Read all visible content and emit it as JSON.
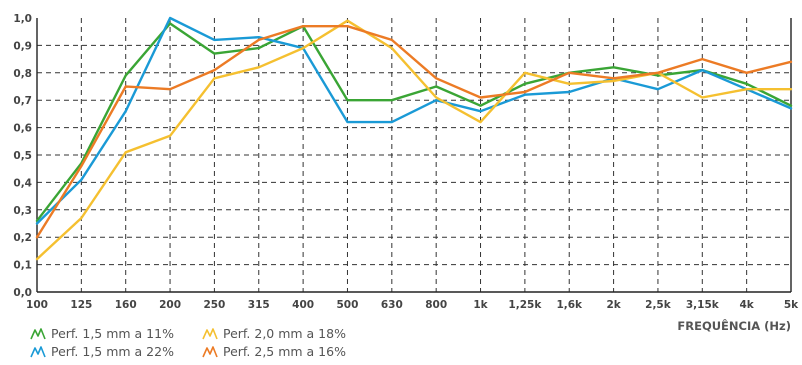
{
  "chart_data": {
    "type": "line",
    "title": "",
    "xlabel": "FREQUÊNCIA (Hz)",
    "ylabel": "",
    "ylim": [
      0,
      1
    ],
    "grid": true,
    "legend_position": "bottom-left",
    "categories": [
      "100",
      "125",
      "160",
      "200",
      "250",
      "315",
      "400",
      "500",
      "630",
      "800",
      "1k",
      "1,25k",
      "1,6k",
      "2k",
      "2,5k",
      "3,15k",
      "4k",
      "5k"
    ],
    "yticks": [
      "0,0",
      "0,1",
      "0,2",
      "0,3",
      "0,4",
      "0,5",
      "0,6",
      "0,7",
      "0,8",
      "0,9",
      "1,0"
    ],
    "series": [
      {
        "name": "Perf. 1,5 mm a 11%",
        "color": "#3aa535",
        "values": [
          0.26,
          0.47,
          0.79,
          0.98,
          0.87,
          0.89,
          0.97,
          0.7,
          0.7,
          0.75,
          0.68,
          0.76,
          0.8,
          0.82,
          0.79,
          0.81,
          0.76,
          0.68
        ]
      },
      {
        "name": "Perf. 1,5 mm a 22%",
        "color": "#1a9ad6",
        "values": [
          0.25,
          0.41,
          0.66,
          1.0,
          0.92,
          0.93,
          0.89,
          0.62,
          0.62,
          0.7,
          0.66,
          0.72,
          0.73,
          0.78,
          0.74,
          0.81,
          0.74,
          0.67
        ]
      },
      {
        "name": "Perf. 2,0 mm a 18%",
        "color": "#f5c030",
        "values": [
          0.12,
          0.27,
          0.51,
          0.57,
          0.78,
          0.82,
          0.89,
          0.99,
          0.89,
          0.71,
          0.62,
          0.8,
          0.76,
          0.77,
          0.8,
          0.71,
          0.74,
          0.74
        ]
      },
      {
        "name": "Perf. 2,5 mm a 16%",
        "color": "#ec7b25",
        "values": [
          0.2,
          0.46,
          0.75,
          0.74,
          0.81,
          0.92,
          0.97,
          0.97,
          0.92,
          0.78,
          0.71,
          0.73,
          0.8,
          0.78,
          0.8,
          0.85,
          0.8,
          0.84
        ]
      }
    ]
  }
}
